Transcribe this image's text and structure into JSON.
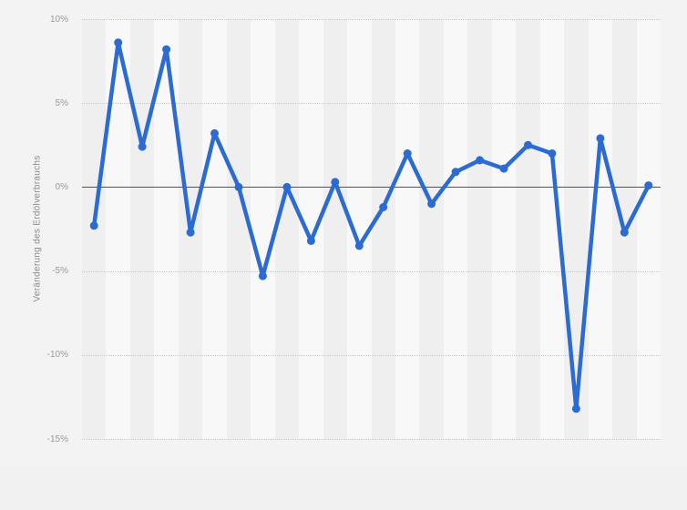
{
  "chart_data": {
    "type": "line",
    "title": "",
    "xlabel": "",
    "ylabel": "Veränderung des Erdölverbrauchs",
    "ylim": [
      -15,
      10
    ],
    "yticks": [
      {
        "label": "10%",
        "value": 10
      },
      {
        "label": "5%",
        "value": 5
      },
      {
        "label": "0%",
        "value": 0
      },
      {
        "label": "-5%",
        "value": -5
      },
      {
        "label": "-10%",
        "value": -10
      },
      {
        "label": "-15%",
        "value": -15
      }
    ],
    "grid": "horizontal-dotted",
    "zero_line": true,
    "legend": "none",
    "x_tick_labels": [],
    "series": [
      {
        "name": "Veränderung des Erdölverbrauchs",
        "values": [
          -2.3,
          8.6,
          2.4,
          8.2,
          -2.7,
          3.2,
          0.0,
          -5.3,
          0.0,
          -3.2,
          0.3,
          -3.5,
          -1.2,
          2.0,
          -1.0,
          0.9,
          1.6,
          1.1,
          2.5,
          2.0,
          -13.2,
          2.9,
          -2.7,
          0.1
        ]
      }
    ]
  },
  "colors": {
    "line": "#2c6bd2",
    "marker": "#2c6bd2",
    "zero_line": "#545454",
    "gridline": "#c8c8c8",
    "stripe_dark": "#efefef",
    "stripe_light": "#f8f8f8",
    "widget_background": "#f3f3f3",
    "page_background": "#f1f1f1",
    "tick_label": "#999999",
    "axis_title": "#8c8c8c"
  }
}
